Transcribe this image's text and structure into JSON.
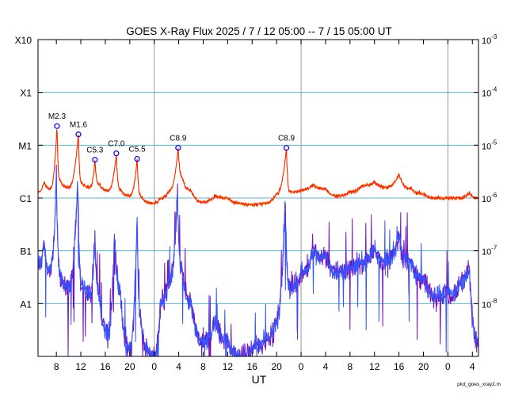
{
  "chart_data": {
    "type": "line",
    "title": "GOES X-Ray Flux   2025  /  7  /  12    05:00 --   7  /  15    05:00    UT",
    "xlabel": "UT",
    "x_unit": "hours since 2025-07-12 05:00 UT",
    "xlim": [
      0,
      72
    ],
    "x_ticks": [
      {
        "t": 3,
        "label": "8"
      },
      {
        "t": 7,
        "label": "12"
      },
      {
        "t": 11,
        "label": "16"
      },
      {
        "t": 15,
        "label": "20"
      },
      {
        "t": 19,
        "label": "0"
      },
      {
        "t": 23,
        "label": "4"
      },
      {
        "t": 27,
        "label": "8"
      },
      {
        "t": 31,
        "label": "12"
      },
      {
        "t": 35,
        "label": "16"
      },
      {
        "t": 39,
        "label": "20"
      },
      {
        "t": 43,
        "label": "0"
      },
      {
        "t": 47,
        "label": "4"
      },
      {
        "t": 51,
        "label": "8"
      },
      {
        "t": 55,
        "label": "12"
      },
      {
        "t": 59,
        "label": "16"
      },
      {
        "t": 63,
        "label": "20"
      },
      {
        "t": 67,
        "label": "0"
      },
      {
        "t": 71,
        "label": "4"
      }
    ],
    "day_boundaries": [
      19,
      43,
      67
    ],
    "y_scale": "log",
    "ylim": [
      1e-09,
      0.001
    ],
    "class_labels": [
      {
        "label": "X10",
        "value": 0.001
      },
      {
        "label": "X1",
        "value": 0.0001
      },
      {
        "label": "M1",
        "value": 1e-05
      },
      {
        "label": "C1",
        "value": 1e-06
      },
      {
        "label": "B1",
        "value": 1e-07
      },
      {
        "label": "A1",
        "value": 1e-08
      }
    ],
    "right_ticks": [
      {
        "label": "10",
        "exp": "-3",
        "value": 0.001
      },
      {
        "label": "10",
        "exp": "-4",
        "value": 0.0001
      },
      {
        "label": "10",
        "exp": "-5",
        "value": 1e-05
      },
      {
        "label": "10",
        "exp": "-6",
        "value": 1e-06
      },
      {
        "label": "10",
        "exp": "-7",
        "value": 1e-07
      },
      {
        "label": "10",
        "exp": "-8",
        "value": 1e-08
      }
    ],
    "grid_lines": [
      0.0001,
      1e-05,
      1e-06,
      1e-07,
      1e-08
    ],
    "colors": {
      "long": "#ff2200",
      "long2": "#ff9900",
      "short": "#3355ff",
      "short2": "#7711bb",
      "grid": "#5ab4d8",
      "day_line": "#999999",
      "marker": "#0000ff"
    },
    "flares": [
      {
        "t": 3.1,
        "flux": 2.3e-05,
        "label": "M2.3"
      },
      {
        "t": 6.6,
        "flux": 1.6e-05,
        "label": "M1.6"
      },
      {
        "t": 9.3,
        "flux": 5.3e-06,
        "label": "C5.3"
      },
      {
        "t": 12.8,
        "flux": 7e-06,
        "label": "C7.0"
      },
      {
        "t": 16.2,
        "flux": 5.5e-06,
        "label": "C5.5"
      },
      {
        "t": 22.9,
        "flux": 8.9e-06,
        "label": "C8.9"
      },
      {
        "t": 40.6,
        "flux": 8.9e-06,
        "label": "C8.9"
      }
    ],
    "long_anchors": [
      [
        0,
        1.3e-06
      ],
      [
        1,
        2e-06
      ],
      [
        2,
        1.5e-06
      ],
      [
        3.1,
        2.3e-05
      ],
      [
        3.6,
        2.2e-06
      ],
      [
        5,
        1.6e-06
      ],
      [
        6.6,
        1.6e-05
      ],
      [
        7.1,
        2e-06
      ],
      [
        8.5,
        1.6e-06
      ],
      [
        9.3,
        5.3e-06
      ],
      [
        10,
        1.8e-06
      ],
      [
        11.5,
        1.4e-06
      ],
      [
        12.8,
        7e-06
      ],
      [
        13.4,
        1.5e-06
      ],
      [
        15,
        1.1e-06
      ],
      [
        16.2,
        5.5e-06
      ],
      [
        16.8,
        1.1e-06
      ],
      [
        19,
        8e-07
      ],
      [
        20,
        1e-06
      ],
      [
        21.5,
        1.4e-06
      ],
      [
        22.9,
        8.9e-06
      ],
      [
        23.6,
        2.5e-06
      ],
      [
        25,
        1.4e-06
      ],
      [
        27,
        8.5e-07
      ],
      [
        29,
        1.1e-06
      ],
      [
        31,
        1e-06
      ],
      [
        33,
        8e-07
      ],
      [
        35,
        7.5e-07
      ],
      [
        37,
        8e-07
      ],
      [
        39,
        1.2e-06
      ],
      [
        40.6,
        8.9e-06
      ],
      [
        41.2,
        1.3e-06
      ],
      [
        43,
        1.4e-06
      ],
      [
        45,
        1.8e-06
      ],
      [
        47,
        1.5e-06
      ],
      [
        49,
        1.1e-06
      ],
      [
        51,
        1.3e-06
      ],
      [
        53,
        1.7e-06
      ],
      [
        55,
        2e-06
      ],
      [
        57,
        1.6e-06
      ],
      [
        59,
        2.8e-06
      ],
      [
        61,
        1.5e-06
      ],
      [
        63,
        1.2e-06
      ],
      [
        65,
        1e-06
      ],
      [
        67,
        1e-06
      ],
      [
        69,
        1e-06
      ],
      [
        70.5,
        1.25e-06
      ],
      [
        72,
        1e-06
      ]
    ],
    "short_anchors": [
      [
        0,
        5e-08
      ],
      [
        1,
        1.5e-07
      ],
      [
        2,
        4e-08
      ],
      [
        3.0,
        3e-06
      ],
      [
        3.6,
        4e-08
      ],
      [
        5,
        2e-08
      ],
      [
        6.5,
        2.3e-06
      ],
      [
        7.1,
        2.5e-08
      ],
      [
        8.5,
        1.5e-08
      ],
      [
        9.3,
        2e-07
      ],
      [
        10,
        1.5e-08
      ],
      [
        11.5,
        3e-09
      ],
      [
        12.5,
        3e-07
      ],
      [
        13.4,
        2e-08
      ],
      [
        15,
        1.5e-09
      ],
      [
        16.2,
        5e-07
      ],
      [
        16.8,
        5e-09
      ],
      [
        19,
        1e-09
      ],
      [
        20,
        1e-08
      ],
      [
        21.5,
        3e-08
      ],
      [
        22.8,
        1.2e-06
      ],
      [
        23.5,
        5e-08
      ],
      [
        25,
        1e-08
      ],
      [
        27,
        2e-09
      ],
      [
        29,
        5e-09
      ],
      [
        31,
        2e-09
      ],
      [
        33,
        1e-09
      ],
      [
        35,
        1.5e-09
      ],
      [
        37,
        2e-09
      ],
      [
        39,
        5e-09
      ],
      [
        40.4,
        1e-06
      ],
      [
        41.2,
        2e-08
      ],
      [
        43,
        4e-08
      ],
      [
        45,
        9e-08
      ],
      [
        47,
        8e-08
      ],
      [
        49,
        4e-08
      ],
      [
        51,
        5e-08
      ],
      [
        53,
        6e-08
      ],
      [
        55,
        1.2e-07
      ],
      [
        57,
        6e-08
      ],
      [
        59,
        2e-07
      ],
      [
        61,
        6e-08
      ],
      [
        63,
        3e-08
      ],
      [
        65,
        1.5e-08
      ],
      [
        67,
        1.5e-08
      ],
      [
        69,
        2.5e-08
      ],
      [
        70.5,
        5e-08
      ],
      [
        72,
        2e-09
      ]
    ]
  },
  "footer": {
    "credit": "plot_goes_xray2.m"
  }
}
